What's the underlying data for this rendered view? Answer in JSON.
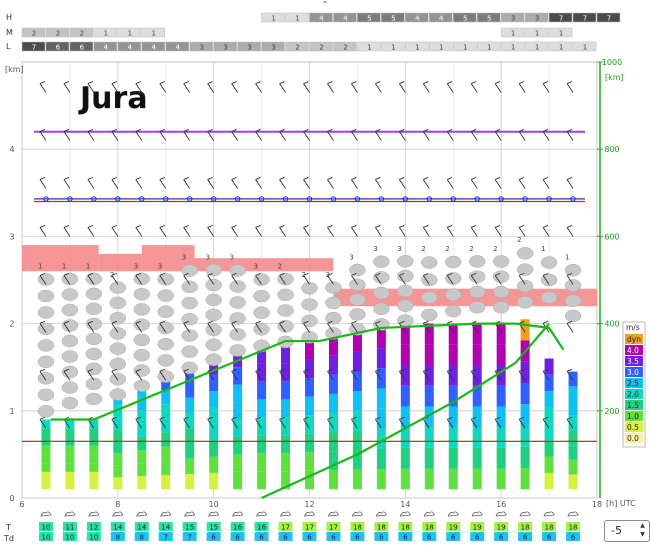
{
  "header": {
    "row_labels": [
      "H",
      "M",
      "L"
    ],
    "collapse_glyph": "⌃"
  },
  "chart_data": {
    "type": "meteogram",
    "title": "Jura",
    "xlabel": "[h] UTC",
    "xlim": [
      6,
      18
    ],
    "x_ticks": [
      6,
      8,
      10,
      12,
      14,
      16,
      18
    ],
    "x_tick_labels": [
      "6",
      "8",
      "10",
      "12",
      "14",
      "16",
      "18"
    ],
    "ylabel_left": "[km]",
    "ylim_left": [
      0,
      5
    ],
    "y_ticks_left": [
      0,
      1,
      2,
      3,
      4
    ],
    "y_tick_labels_left": [
      "0",
      "1",
      "2",
      "3",
      "4"
    ],
    "ylabel_right": "[km]",
    "y2_ticks": [
      200,
      400,
      600,
      800,
      1000
    ],
    "y2_tick_labels": [
      "200",
      "400",
      "600",
      "800",
      "1000"
    ],
    "y2_axis_color": "#22aa22",
    "times": [
      6.5,
      7,
      7.5,
      8,
      8.5,
      9,
      9.5,
      10,
      10.5,
      11,
      11.5,
      12,
      12.5,
      13,
      13.5,
      14,
      14.5,
      15,
      15.5,
      16,
      16.5,
      17,
      17.5
    ],
    "cloud_cover": {
      "high": {
        "start": 11,
        "step": 0.5,
        "values": [
          1,
          1,
          4,
          4,
          5,
          5,
          4,
          4,
          5,
          5,
          3,
          3,
          7,
          7,
          7
        ]
      },
      "middle": {
        "start": 6,
        "step": 0.5,
        "values": [
          2,
          2,
          2,
          1,
          1,
          1,
          null,
          null,
          null,
          null,
          null,
          null,
          null,
          null,
          null,
          null,
          null,
          null,
          null,
          null,
          1,
          1,
          1
        ]
      },
      "low": {
        "start": 6,
        "step": 0.5,
        "values": [
          7,
          6,
          6,
          4,
          4,
          4,
          4,
          3,
          3,
          3,
          3,
          2,
          2,
          2,
          1,
          1,
          1,
          1,
          1,
          1,
          1,
          1,
          1,
          1
        ]
      }
    },
    "thermal_updraft": {
      "unit": "m/s",
      "legend_labels": [
        "dyn",
        "4.0",
        "3.5",
        "3.0",
        "2.5",
        "2.0",
        "1.5",
        "1.0",
        "0.5",
        "0.0"
      ],
      "legend_colors": [
        "#f0a020",
        "#b000b0",
        "#7020e0",
        "#3060ff",
        "#10c0f0",
        "#10d8c0",
        "#20d080",
        "#60e040",
        "#d8f040",
        "#fff0a0"
      ],
      "column_tops_km": [
        0.9,
        0.9,
        0.9,
        1.2,
        1.3,
        1.4,
        1.5,
        1.6,
        1.7,
        1.75,
        1.75,
        1.8,
        1.85,
        1.9,
        1.95,
        2.0,
        2.0,
        2.0,
        2.0,
        2.0,
        2.05,
        1.6,
        1.45
      ]
    },
    "cumulus": {
      "base_km": [
        0.9,
        1.0,
        1.05,
        1.1,
        1.2,
        1.3,
        1.4,
        1.5,
        1.6,
        1.65,
        1.7,
        1.75,
        1.8,
        1.85,
        1.9,
        1.95,
        2.0,
        2.05,
        2.1,
        2.1,
        2.15,
        2.2,
        2.0
      ],
      "top_km": [
        2.6,
        2.6,
        2.6,
        2.5,
        2.6,
        2.6,
        2.7,
        2.7,
        2.7,
        2.6,
        2.6,
        2.5,
        2.5,
        2.7,
        2.8,
        2.8,
        2.8,
        2.8,
        2.8,
        2.8,
        2.9,
        2.8,
        2.7
      ],
      "octas": [
        "1",
        "1",
        "1",
        "2",
        "3",
        "3",
        "3",
        "3",
        "3",
        "3",
        "2",
        "2",
        "3",
        "3",
        "3",
        "3",
        "2",
        "2",
        "2",
        "2",
        "2",
        "1",
        "1"
      ]
    },
    "inversion_layers": [
      {
        "x0": 6,
        "x1": 7.6,
        "y0": 2.6,
        "y1": 2.9
      },
      {
        "x0": 7.6,
        "x1": 8.5,
        "y0": 2.6,
        "y1": 2.8
      },
      {
        "x0": 8.5,
        "x1": 9.6,
        "y0": 2.6,
        "y1": 2.9
      },
      {
        "x0": 9.6,
        "x1": 12.5,
        "y0": 2.6,
        "y1": 2.75
      },
      {
        "x0": 12.5,
        "x1": 18,
        "y0": 2.2,
        "y1": 2.4
      }
    ],
    "green_lines": [
      {
        "name": "",
        "x": [
          6.6,
          7.5,
          9.5,
          11.5,
          12.2,
          13.5,
          15.5,
          16.3,
          17.0,
          17.3
        ],
        "y": [
          0.9,
          0.9,
          1.35,
          1.8,
          1.8,
          1.95,
          2.0,
          2.0,
          1.95,
          1.7
        ]
      },
      {
        "name": "",
        "x": [
          11.0,
          13.0,
          15.0,
          16.3,
          17.0
        ],
        "y": [
          0.0,
          0.5,
          1.1,
          1.55,
          2.0
        ]
      }
    ],
    "temperature": {
      "label": "T",
      "values": [
        10,
        11,
        12,
        14,
        14,
        14,
        15,
        15,
        16,
        16,
        17,
        17,
        17,
        18,
        18,
        18,
        18,
        19,
        19,
        19,
        18,
        18,
        18
      ]
    },
    "dewpoint": {
      "label": "Td",
      "values": [
        10,
        10,
        10,
        8,
        8,
        7,
        7,
        6,
        6,
        6,
        6,
        6,
        6,
        6,
        6,
        6,
        6,
        6,
        6,
        6,
        6,
        6,
        6
      ]
    },
    "offset_control": {
      "value": "-5"
    }
  }
}
